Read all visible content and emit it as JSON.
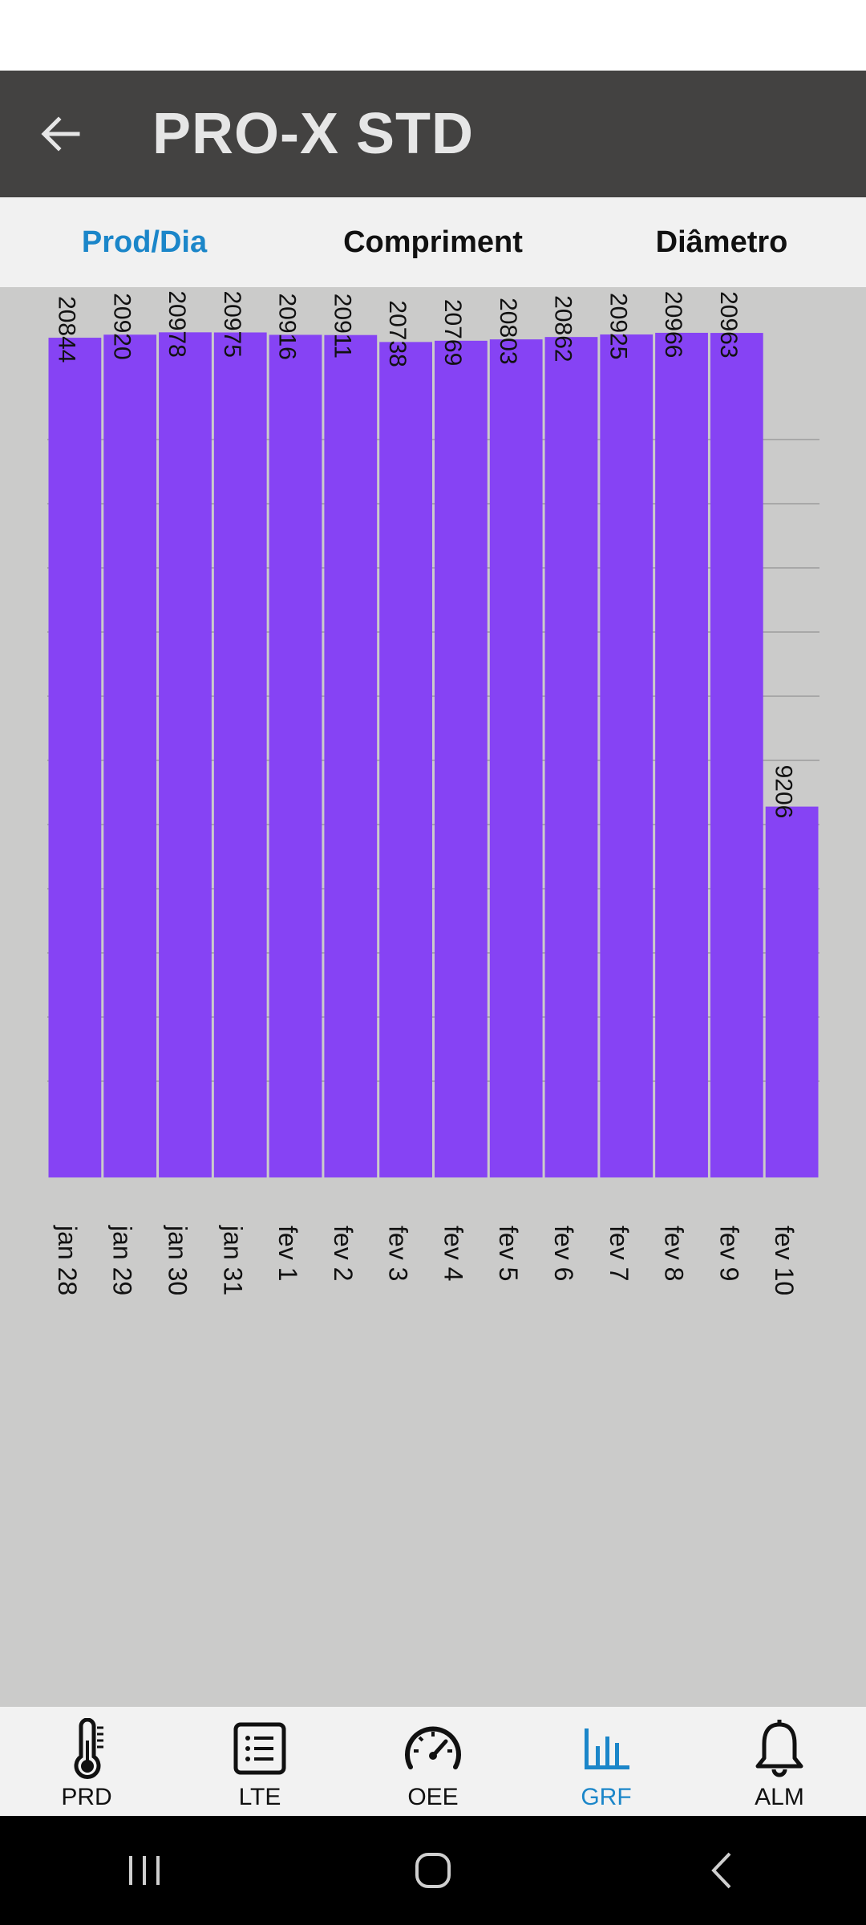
{
  "app": {
    "title": "PRO-X STD"
  },
  "tabs": [
    {
      "label": "Prod/Dia",
      "active": true
    },
    {
      "label": "Compriment",
      "active": false
    },
    {
      "label": "Diâmetro",
      "active": false
    }
  ],
  "chart_data": {
    "type": "bar",
    "categories": [
      "jan 28",
      "jan 29",
      "jan 30",
      "jan 31",
      "fev 1",
      "fev 2",
      "fev 3",
      "fev 4",
      "fev 5",
      "fev 6",
      "fev 7",
      "fev 8",
      "fev 9",
      "fev 10"
    ],
    "values": [
      20844,
      20920,
      20978,
      20975,
      20916,
      20911,
      20738,
      20769,
      20803,
      20862,
      20925,
      20966,
      20963,
      9206
    ],
    "ylim": [
      0,
      22000
    ],
    "grid": true,
    "bar_color": "#8643f4",
    "background_color": "#cbcbca"
  },
  "bottom_nav": [
    {
      "label": "PRD",
      "icon": "thermometer-icon",
      "active": false
    },
    {
      "label": "LTE",
      "icon": "list-icon",
      "active": false
    },
    {
      "label": "OEE",
      "icon": "gauge-icon",
      "active": false
    },
    {
      "label": "GRF",
      "icon": "bar-chart-icon",
      "active": true
    },
    {
      "label": "ALM",
      "icon": "bell-icon",
      "active": false
    }
  ],
  "colors": {
    "accent": "#1b86c9",
    "app_bar": "#434241",
    "bar": "#8643f4"
  }
}
